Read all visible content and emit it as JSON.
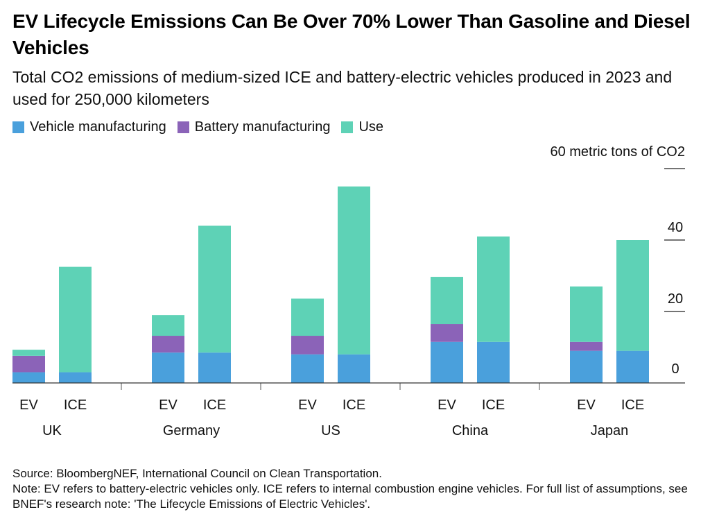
{
  "header": {
    "title": "EV Lifecycle Emissions Can Be Over 70% Lower Than Gasoline and Diesel Vehicles",
    "subtitle": "Total CO2 emissions of medium-sized ICE and battery-electric vehicles produced in 2023 and used for 250,000 kilometers"
  },
  "footer": {
    "source": "Source: BloombergNEF, International Council on Clean Transportation.",
    "note": "Note: EV refers to battery-electric vehicles only. ICE refers to internal combustion engine vehicles. For full list of assumptions, see BNEF's research note: 'The Lifecycle Emissions of Electric Vehicles'."
  },
  "chart_data": {
    "type": "bar",
    "stacked": true,
    "y_axis_label": "60 metric tons of CO2",
    "y_ticks": [
      "0",
      "20",
      "40"
    ],
    "ylim": [
      0,
      60
    ],
    "grid": false,
    "legend_position": "top-left",
    "groups": [
      {
        "name": "UK",
        "bars": [
          "EV",
          "ICE"
        ]
      },
      {
        "name": "Germany",
        "bars": [
          "EV",
          "ICE"
        ]
      },
      {
        "name": "US",
        "bars": [
          "EV",
          "ICE"
        ]
      },
      {
        "name": "China",
        "bars": [
          "EV",
          "ICE"
        ]
      },
      {
        "name": "Japan",
        "bars": [
          "EV",
          "ICE"
        ]
      }
    ],
    "series": [
      {
        "name": "Vehicle manufacturing",
        "color": "#4aa0dc",
        "values": [
          3.0,
          3.0,
          8.5,
          8.5,
          8.0,
          8.0,
          11.5,
          11.5,
          9.0,
          9.0
        ]
      },
      {
        "name": "Battery manufacturing",
        "color": "#8b63b8",
        "values": [
          4.6,
          0,
          4.7,
          0,
          5.2,
          0,
          5.0,
          0,
          2.5,
          0
        ]
      },
      {
        "name": "Use",
        "color": "#5ed2b6",
        "values": [
          1.7,
          29.5,
          5.8,
          35.5,
          10.4,
          47.0,
          13.2,
          29.5,
          15.5,
          31.0
        ]
      }
    ]
  }
}
